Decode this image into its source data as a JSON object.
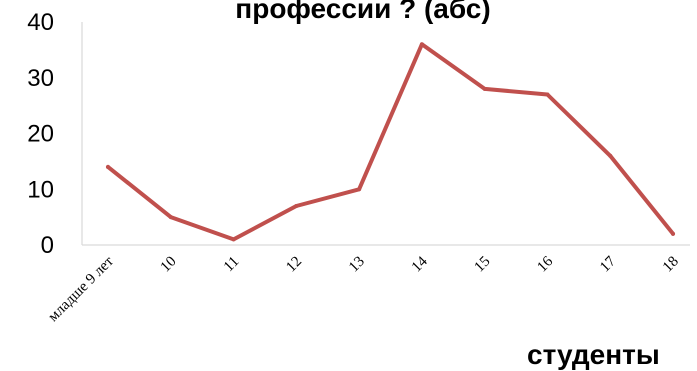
{
  "chart_data": {
    "type": "line",
    "title": "профессии ? (абс)",
    "categories": [
      "младше 9 лет",
      "10",
      "11",
      "12",
      "13",
      "14",
      "15",
      "16",
      "17",
      "18"
    ],
    "values": [
      14,
      5,
      1,
      7,
      10,
      36,
      28,
      27,
      16,
      2
    ],
    "yticks": [
      "0",
      "10",
      "20",
      "30",
      "40"
    ],
    "ylim": [
      0,
      40
    ],
    "grid": false,
    "line_color": "#c0504d"
  },
  "footer": {
    "text": "студенты"
  }
}
